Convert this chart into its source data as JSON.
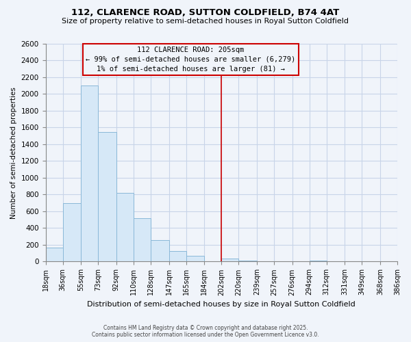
{
  "title1": "112, CLARENCE ROAD, SUTTON COLDFIELD, B74 4AT",
  "title2": "Size of property relative to semi-detached houses in Royal Sutton Coldfield",
  "xlabel": "Distribution of semi-detached houses by size in Royal Sutton Coldfield",
  "ylabel": "Number of semi-detached properties",
  "bar_edges": [
    18,
    36,
    55,
    73,
    92,
    110,
    128,
    147,
    165,
    184,
    202,
    220,
    239,
    257,
    276,
    294,
    312,
    331,
    349,
    368,
    386
  ],
  "bar_heights": [
    170,
    700,
    2100,
    1550,
    820,
    520,
    255,
    130,
    70,
    0,
    40,
    10,
    0,
    0,
    0,
    10,
    0,
    0,
    0,
    0
  ],
  "bar_color": "#d6e8f7",
  "bar_edge_color": "#8ab8d8",
  "vline_x": 202,
  "vline_color": "#cc0000",
  "ylim": [
    0,
    2600
  ],
  "yticks": [
    0,
    200,
    400,
    600,
    800,
    1000,
    1200,
    1400,
    1600,
    1800,
    2000,
    2200,
    2400,
    2600
  ],
  "tick_labels": [
    "18sqm",
    "36sqm",
    "55sqm",
    "73sqm",
    "92sqm",
    "110sqm",
    "128sqm",
    "147sqm",
    "165sqm",
    "184sqm",
    "202sqm",
    "220sqm",
    "239sqm",
    "257sqm",
    "276sqm",
    "294sqm",
    "312sqm",
    "331sqm",
    "349sqm",
    "368sqm",
    "386sqm"
  ],
  "annotation_title": "112 CLARENCE ROAD: 205sqm",
  "annotation_line1": "← 99% of semi-detached houses are smaller (6,279)",
  "annotation_line2": "1% of semi-detached houses are larger (81) →",
  "footnote1": "Contains HM Land Registry data © Crown copyright and database right 2025.",
  "footnote2": "Contains public sector information licensed under the Open Government Licence v3.0.",
  "background_color": "#f0f4fa",
  "grid_color": "#c8d4e8"
}
